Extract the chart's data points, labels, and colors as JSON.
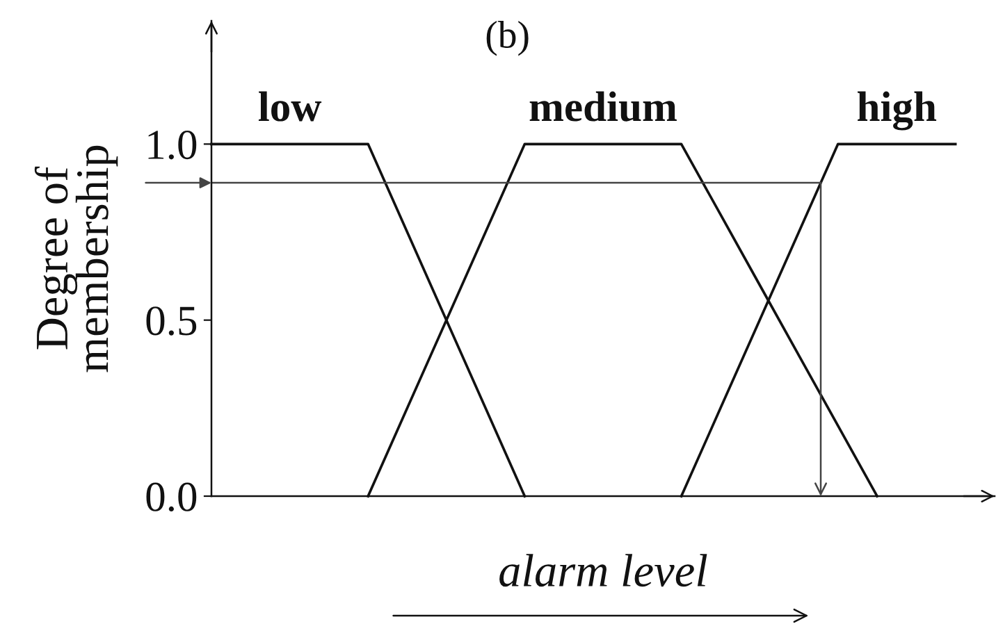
{
  "chart_data": {
    "type": "line",
    "title": "(b)",
    "xlabel": "alarm level",
    "ylabel": "Degree of\nmembership",
    "categories": [
      null,
      null,
      null,
      null,
      null,
      null,
      null,
      null,
      null,
      null,
      null,
      null,
      null,
      null,
      null,
      null,
      null,
      null,
      null,
      null,
      null
    ],
    "ylim": [
      0,
      1.35
    ],
    "yticks": [
      {
        "value": 0,
        "label": "0.0"
      },
      {
        "value": 0.5,
        "label": "0.5"
      },
      {
        "value": 1,
        "label": "1.0"
      }
    ],
    "tick_labels": "y",
    "grid": false,
    "series": [
      {
        "name": "low",
        "color": "#111111",
        "values": [
          1,
          1,
          1,
          1,
          1,
          0.75,
          0.5,
          0.25,
          0,
          null,
          null,
          null,
          null,
          null,
          null,
          null,
          null,
          null,
          null,
          null,
          null
        ]
      },
      {
        "name": "medium",
        "color": "#111111",
        "values": [
          null,
          null,
          null,
          null,
          0,
          0.25,
          0.5,
          0.75,
          1,
          1,
          1,
          1,
          1,
          0.8,
          0.6,
          0.4,
          0.2,
          0,
          null,
          null,
          null
        ]
      },
      {
        "name": "high",
        "color": "#111111",
        "values": [
          null,
          null,
          null,
          null,
          null,
          null,
          null,
          null,
          null,
          null,
          null,
          null,
          0,
          0.25,
          0.5,
          0.75,
          1,
          1,
          1,
          1,
          null
        ]
      }
    ],
    "ref_lines": [
      {
        "axis": "y",
        "value": 0.89,
        "color": "#444444"
      }
    ]
  }
}
